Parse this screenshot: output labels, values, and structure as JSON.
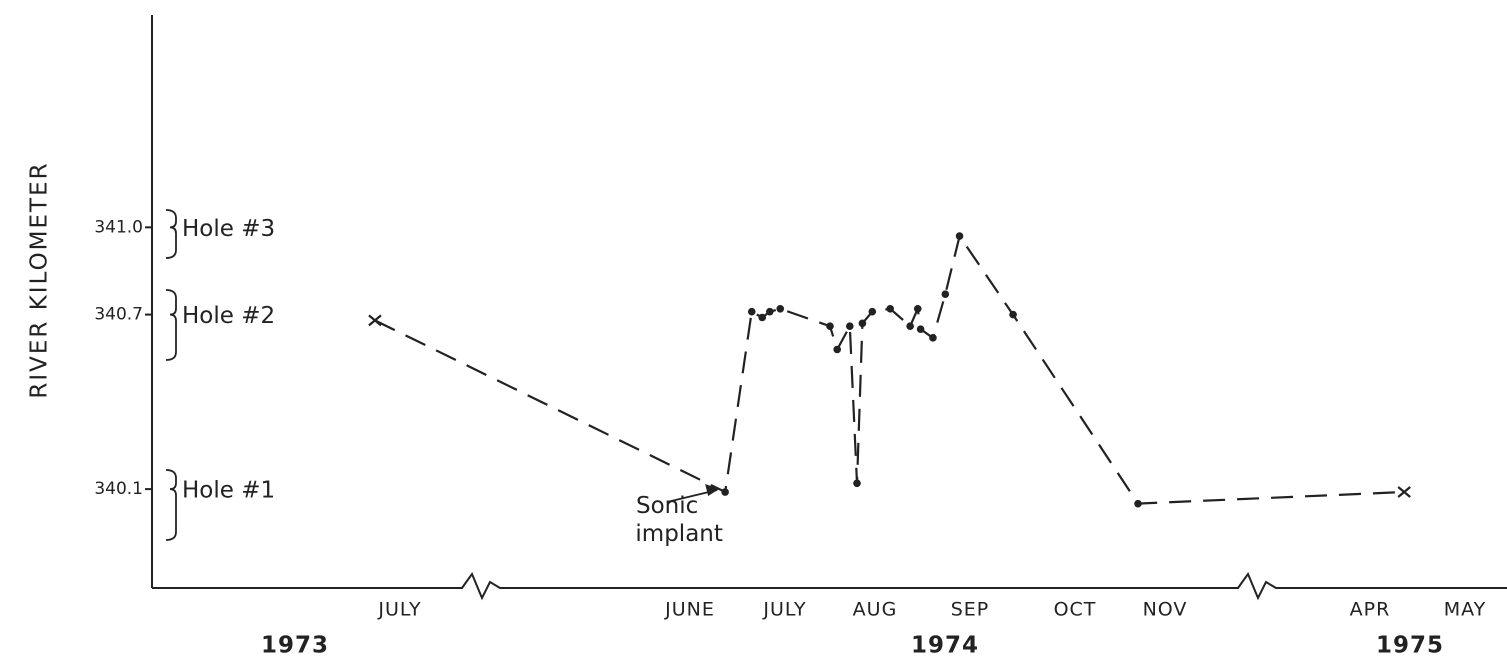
{
  "chart_data": {
    "type": "line",
    "y_label": "RIVER KILOMETER",
    "ylim": [
      339.76,
      341.73
    ],
    "yticks": [
      {
        "value": 341,
        "label": "341.0"
      },
      340.7,
      340.1
    ],
    "xlim": [
      5,
      28.5
    ],
    "xticks": [
      {
        "value": 6,
        "label": "JULY"
      },
      {
        "value": 17,
        "label": "JUNE"
      },
      {
        "value": 18,
        "label": "JULY"
      },
      {
        "value": 19,
        "label": "AUG"
      },
      {
        "value": 20,
        "label": "SEP"
      },
      {
        "value": 21,
        "label": "OCT"
      },
      {
        "value": 22,
        "label": "NOV"
      },
      {
        "value": 27,
        "label": "APR"
      },
      {
        "value": 28,
        "label": "MAY"
      }
    ],
    "years": [
      1973,
      1974,
      1975
    ],
    "holes": [
      "Hole #3",
      "Hole #2",
      "Hole #1"
    ],
    "annotation": "Sonic implant",
    "end_marker": "x",
    "color": "#222222",
    "x": [
      5.05,
      17.37,
      17.65,
      17.76,
      17.84,
      17.95,
      18.5,
      18.58,
      18.72,
      18.8,
      18.86,
      18.97,
      19.16,
      19.37,
      19.45,
      19.48,
      19.61,
      19.74,
      19.89,
      20.41,
      21.7,
      27.36
    ],
    "values": [
      340.68,
      340.09,
      340.71,
      340.69,
      340.71,
      340.72,
      340.66,
      340.58,
      340.66,
      340.12,
      340.67,
      340.71,
      340.72,
      340.66,
      340.72,
      340.65,
      340.62,
      340.77,
      340.97,
      340.7,
      340.05,
      340.09
    ]
  }
}
